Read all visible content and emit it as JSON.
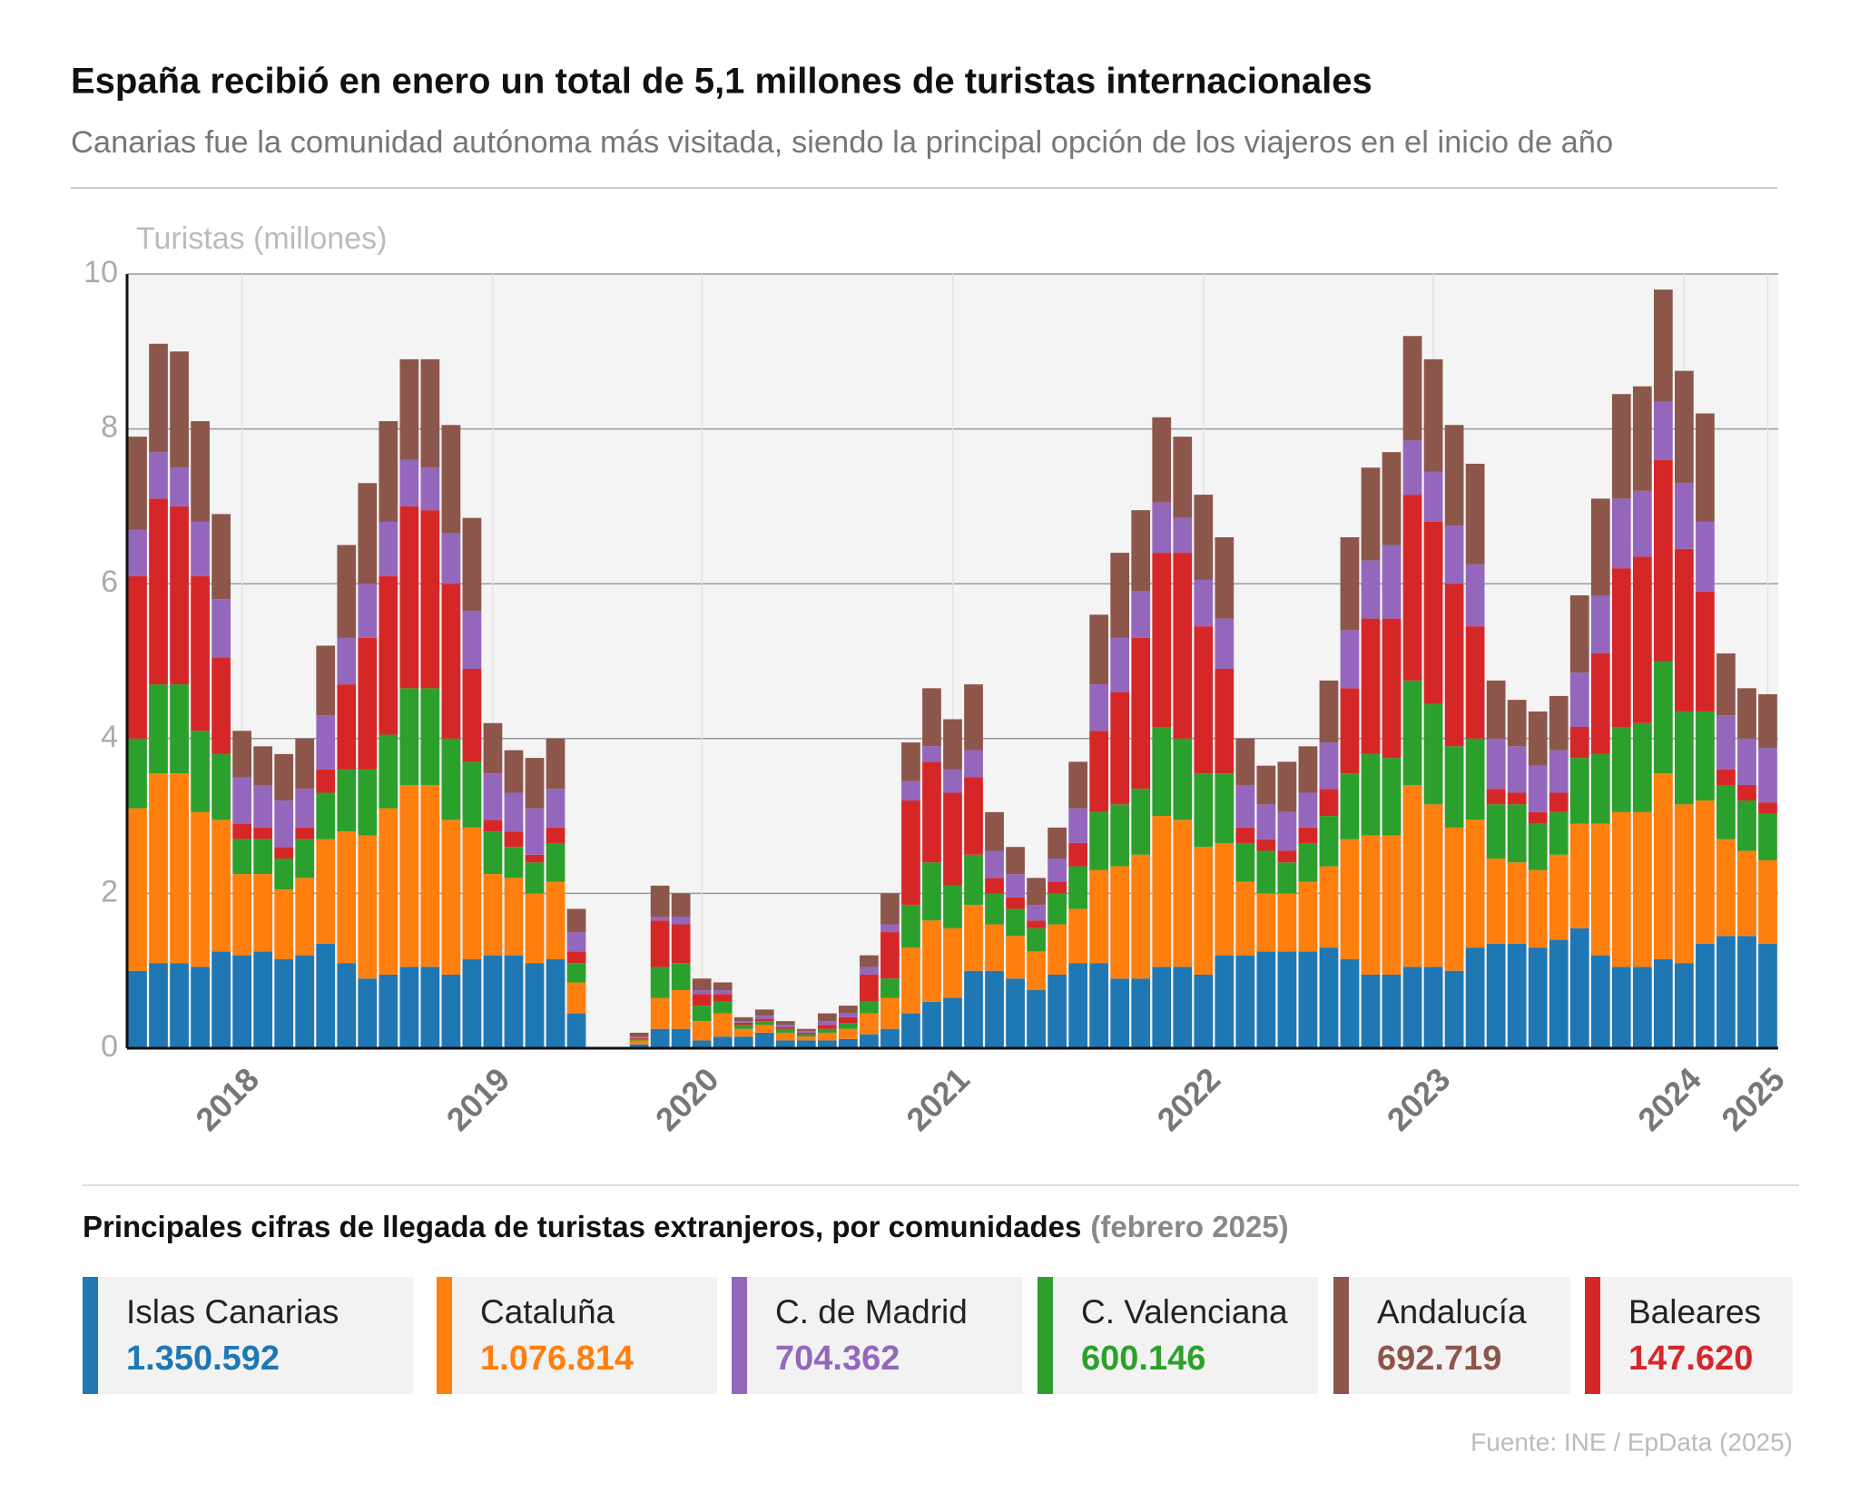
{
  "chart_data": {
    "type": "stacked_bar",
    "title": "España recibió en enero un total de 5,1 millones de turistas internacionales",
    "subtitle": "Canarias fue la comunidad autónoma más visitada, siendo la principal opción de los viajeros en el inicio de año",
    "y_label": "Turistas (millones)",
    "ylim": [
      0,
      10
    ],
    "yticks": [
      0,
      2,
      4,
      6,
      8,
      10
    ],
    "grid": true,
    "categories": [
      null,
      null,
      null,
      null,
      null,
      "2018",
      null,
      null,
      null,
      null,
      null,
      null,
      null,
      null,
      null,
      null,
      null,
      "2019",
      null,
      null,
      null,
      null,
      null,
      null,
      null,
      null,
      null,
      "2020",
      null,
      null,
      null,
      null,
      null,
      null,
      null,
      null,
      null,
      null,
      null,
      "2021",
      null,
      null,
      null,
      null,
      null,
      null,
      null,
      null,
      null,
      null,
      null,
      "2022",
      null,
      null,
      null,
      null,
      null,
      null,
      null,
      null,
      null,
      null,
      "2023",
      null,
      null,
      null,
      null,
      null,
      null,
      null,
      null,
      null,
      null,
      null,
      "2024",
      null,
      null,
      null,
      "2025"
    ],
    "series": [
      {
        "name": "Islas Canarias",
        "color": "#1f77b4",
        "values": [
          1.0,
          1.1,
          1.1,
          1.05,
          1.25,
          1.2,
          1.25,
          1.15,
          1.2,
          1.35,
          1.1,
          0.9,
          0.95,
          1.05,
          1.05,
          0.95,
          1.15,
          1.2,
          1.2,
          1.1,
          1.15,
          0.45,
          0,
          0,
          0.05,
          0.25,
          0.25,
          0.1,
          0.15,
          0.15,
          0.2,
          0.1,
          0.1,
          0.1,
          0.12,
          0.18,
          0.25,
          0.45,
          0.6,
          0.65,
          1.0,
          1.0,
          0.9,
          0.75,
          0.95,
          1.1,
          1.1,
          0.9,
          0.9,
          1.05,
          1.05,
          0.95,
          1.2,
          1.2,
          1.25,
          1.25,
          1.25,
          1.3,
          1.15,
          0.95,
          0.95,
          1.05,
          1.05,
          1.0,
          1.3,
          1.35,
          1.35,
          1.3,
          1.4,
          1.55,
          1.2,
          1.05,
          1.05,
          1.15,
          1.1,
          1.35,
          1.45,
          1.45,
          1.350592
        ]
      },
      {
        "name": "Cataluña",
        "color": "#ff7f0e",
        "values": [
          2.1,
          2.45,
          2.45,
          2.0,
          1.7,
          1.05,
          1.0,
          0.9,
          1.0,
          1.35,
          1.7,
          1.85,
          2.15,
          2.35,
          2.35,
          2.0,
          1.7,
          1.05,
          1.0,
          0.9,
          1.0,
          0.4,
          0,
          0,
          0.05,
          0.4,
          0.5,
          0.25,
          0.3,
          0.1,
          0.1,
          0.1,
          0.05,
          0.1,
          0.13,
          0.27,
          0.4,
          0.85,
          1.05,
          0.9,
          0.85,
          0.6,
          0.55,
          0.5,
          0.65,
          0.7,
          1.2,
          1.45,
          1.6,
          1.95,
          1.9,
          1.65,
          1.45,
          0.95,
          0.75,
          0.75,
          0.9,
          1.05,
          1.55,
          1.8,
          1.8,
          2.35,
          2.1,
          1.85,
          1.65,
          1.1,
          1.05,
          1.0,
          1.1,
          1.35,
          1.7,
          2.0,
          2.0,
          2.4,
          2.05,
          1.85,
          1.25,
          1.1,
          1.076814
        ]
      },
      {
        "name": "C. Valenciana",
        "color": "#2ca02c",
        "values": [
          0.9,
          1.15,
          1.15,
          1.05,
          0.85,
          0.45,
          0.45,
          0.4,
          0.5,
          0.6,
          0.8,
          0.85,
          0.95,
          1.25,
          1.25,
          1.05,
          0.85,
          0.55,
          0.4,
          0.4,
          0.5,
          0.25,
          0,
          0,
          0.02,
          0.4,
          0.35,
          0.2,
          0.15,
          0.05,
          0.05,
          0.05,
          0.03,
          0.05,
          0.07,
          0.15,
          0.25,
          0.55,
          0.75,
          0.55,
          0.65,
          0.4,
          0.35,
          0.3,
          0.4,
          0.55,
          0.75,
          0.8,
          0.85,
          1.15,
          1.05,
          0.95,
          0.9,
          0.5,
          0.55,
          0.4,
          0.5,
          0.65,
          0.85,
          1.05,
          1.0,
          1.35,
          1.3,
          1.05,
          1.05,
          0.7,
          0.75,
          0.6,
          0.55,
          0.85,
          0.9,
          1.1,
          1.15,
          1.45,
          1.2,
          1.15,
          0.7,
          0.65,
          0.600146
        ]
      },
      {
        "name": "Baleares",
        "color": "#d62728",
        "values": [
          2.1,
          2.4,
          2.3,
          2.0,
          1.25,
          0.2,
          0.15,
          0.15,
          0.15,
          0.3,
          1.1,
          1.7,
          2.05,
          2.35,
          2.3,
          2.0,
          1.2,
          0.15,
          0.2,
          0.1,
          0.2,
          0.15,
          0,
          0,
          0.01,
          0.6,
          0.5,
          0.15,
          0.1,
          0.03,
          0.03,
          0.02,
          0.02,
          0.05,
          0.08,
          0.35,
          0.6,
          1.35,
          1.3,
          1.2,
          1.0,
          0.2,
          0.15,
          0.1,
          0.15,
          0.3,
          1.05,
          1.45,
          1.95,
          2.25,
          2.4,
          1.9,
          1.35,
          0.2,
          0.15,
          0.15,
          0.2,
          0.35,
          1.1,
          1.75,
          1.8,
          2.4,
          2.35,
          2.1,
          1.45,
          0.2,
          0.15,
          0.15,
          0.25,
          0.4,
          1.3,
          2.05,
          2.15,
          2.6,
          2.1,
          1.55,
          0.2,
          0.2,
          0.14762
        ]
      },
      {
        "name": "C. de Madrid",
        "color": "#9467bd",
        "values": [
          0.6,
          0.6,
          0.5,
          0.7,
          0.75,
          0.6,
          0.55,
          0.6,
          0.5,
          0.7,
          0.6,
          0.7,
          0.7,
          0.6,
          0.55,
          0.65,
          0.75,
          0.6,
          0.5,
          0.6,
          0.5,
          0.25,
          0,
          0,
          0.02,
          0.05,
          0.1,
          0.05,
          0.05,
          0.02,
          0.04,
          0.03,
          0.02,
          0.05,
          0.05,
          0.1,
          0.1,
          0.25,
          0.2,
          0.3,
          0.35,
          0.35,
          0.3,
          0.2,
          0.3,
          0.45,
          0.6,
          0.7,
          0.6,
          0.65,
          0.45,
          0.6,
          0.65,
          0.55,
          0.45,
          0.5,
          0.45,
          0.6,
          0.75,
          0.75,
          0.95,
          0.7,
          0.65,
          0.75,
          0.8,
          0.65,
          0.6,
          0.6,
          0.55,
          0.7,
          0.75,
          0.9,
          0.85,
          0.75,
          0.85,
          0.9,
          0.7,
          0.6,
          0.704362
        ]
      },
      {
        "name": "Andalucía",
        "color": "#8c564b",
        "values": [
          1.2,
          1.4,
          1.5,
          1.3,
          1.1,
          0.6,
          0.5,
          0.6,
          0.65,
          0.9,
          1.2,
          1.3,
          1.3,
          1.3,
          1.4,
          1.4,
          1.2,
          0.65,
          0.55,
          0.65,
          0.65,
          0.3,
          0,
          0,
          0.05,
          0.4,
          0.3,
          0.15,
          0.1,
          0.05,
          0.08,
          0.05,
          0.03,
          0.1,
          0.1,
          0.15,
          0.4,
          0.5,
          0.75,
          0.65,
          0.85,
          0.5,
          0.35,
          0.35,
          0.4,
          0.6,
          0.9,
          1.1,
          1.05,
          1.1,
          1.05,
          1.1,
          1.05,
          0.6,
          0.5,
          0.65,
          0.6,
          0.8,
          1.2,
          1.2,
          1.2,
          1.35,
          1.45,
          1.3,
          1.3,
          0.75,
          0.6,
          0.7,
          0.7,
          1.0,
          1.25,
          1.35,
          1.35,
          1.45,
          1.45,
          1.4,
          0.8,
          0.65,
          0.692719
        ]
      }
    ],
    "summary": {
      "title": "Principales cifras de llegada de turistas extranjeros, por comunidades",
      "period": "(febrero 2025)",
      "labels": [
        "1.350.592",
        "1.076.814",
        "600.146",
        "147.620",
        "704.362",
        "692.719"
      ]
    },
    "source": "Fuente: INE / EpData (2025)"
  }
}
